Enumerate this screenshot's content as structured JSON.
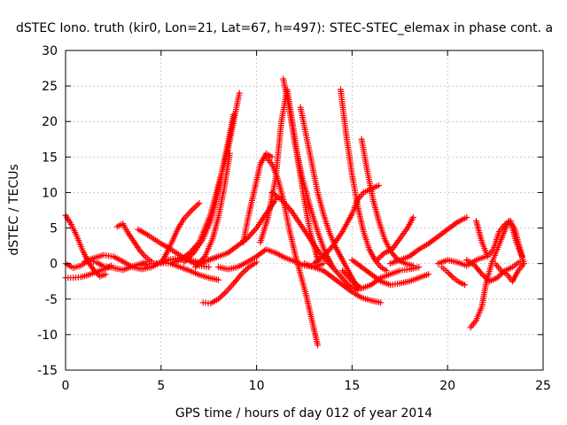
{
  "chart_data": {
    "type": "scatter",
    "title": "dSTEC Iono. truth (kir0, Lon=21, Lat=67, h=497): STEC-STEC_elemax in phase cont. a",
    "xlabel": "GPS time / hours of day 012 of year 2014",
    "ylabel": "dSTEC  / TECUs",
    "xlim": [
      0,
      25
    ],
    "ylim": [
      -15,
      30
    ],
    "x_ticks": [
      "0",
      "5",
      "10",
      "15",
      "20",
      "25"
    ],
    "y_ticks": [
      "-15",
      "-10",
      "-5",
      "0",
      "5",
      "10",
      "15",
      "20",
      "25",
      "30"
    ],
    "grid": true,
    "marker": "plus",
    "color": "#ff0000",
    "series": [
      {
        "x": [
          0.0,
          0.3,
          0.6,
          0.9,
          1.2,
          1.5,
          1.8,
          2.1
        ],
        "y": [
          6.8,
          5.5,
          3.8,
          1.8,
          0.2,
          -1.0,
          -1.8,
          -1.5
        ]
      },
      {
        "x": [
          0.0,
          0.4,
          0.8,
          1.2,
          1.6,
          2.0,
          2.4
        ],
        "y": [
          -2.0,
          -2.0,
          -1.9,
          -1.6,
          -1.2,
          -0.8,
          -0.3
        ]
      },
      {
        "x": [
          0.0,
          0.4,
          0.8,
          1.2,
          1.6,
          2.0,
          2.5,
          3.0,
          3.6,
          4.2
        ],
        "y": [
          0.0,
          -0.6,
          -0.3,
          0.4,
          0.2,
          -0.4,
          -0.6,
          -0.9,
          -0.3,
          0.2
        ]
      },
      {
        "x": [
          1.0,
          1.5,
          2.0,
          2.5,
          3.0,
          3.5,
          4.0,
          4.5,
          5.0,
          5.5,
          6.0,
          6.5,
          7.0,
          7.5,
          8.0
        ],
        "y": [
          0.3,
          0.8,
          1.2,
          1.0,
          0.3,
          -0.5,
          -0.8,
          -0.5,
          0.2,
          0.6,
          0.8,
          0.5,
          0.2,
          0.5,
          1.0
        ]
      },
      {
        "x": [
          2.7,
          3.0,
          3.3,
          3.6,
          3.9,
          4.2,
          4.5
        ],
        "y": [
          5.2,
          5.6,
          4.2,
          3.0,
          1.8,
          0.9,
          0.3
        ]
      },
      {
        "x": [
          3.8,
          4.2,
          4.6,
          5.0,
          5.4,
          5.8,
          6.2,
          6.6,
          7.0,
          7.5
        ],
        "y": [
          4.8,
          4.2,
          3.5,
          2.8,
          2.2,
          1.5,
          0.8,
          0.2,
          -0.3,
          -0.5
        ]
      },
      {
        "x": [
          4.0,
          4.5,
          5.0,
          5.5,
          6.0,
          6.5,
          7.0,
          7.5,
          8.0
        ],
        "y": [
          -0.2,
          0.0,
          0.1,
          0.0,
          -0.5,
          -1.0,
          -1.6,
          -2.0,
          -2.3
        ]
      },
      {
        "x": [
          5.0,
          5.3,
          5.6,
          5.9,
          6.2,
          6.6,
          7.0
        ],
        "y": [
          0.0,
          1.5,
          3.2,
          5.0,
          6.3,
          7.5,
          8.5
        ]
      },
      {
        "x": [
          5.5,
          6.0,
          6.5,
          7.0,
          7.3,
          7.6,
          7.9,
          8.2,
          8.5,
          8.8,
          9.1
        ],
        "y": [
          0.0,
          0.5,
          1.5,
          3.0,
          5.0,
          7.0,
          10.0,
          13.0,
          16.0,
          20.0,
          24.0
        ]
      },
      {
        "x": [
          6.2,
          6.7,
          7.2,
          7.6,
          7.9,
          8.2,
          8.5,
          8.8
        ],
        "y": [
          0.2,
          1.5,
          3.5,
          6.0,
          9.0,
          13.0,
          17.0,
          21.0
        ]
      },
      {
        "x": [
          6.8,
          7.3,
          7.7,
          8.0,
          8.3,
          8.6
        ],
        "y": [
          -0.5,
          1.0,
          3.5,
          6.5,
          10.5,
          15.5
        ]
      },
      {
        "x": [
          7.0,
          7.5,
          8.0,
          8.5,
          9.0,
          9.5,
          10.0,
          10.5,
          11.0
        ],
        "y": [
          0.0,
          0.5,
          1.0,
          1.5,
          2.5,
          3.5,
          5.0,
          7.0,
          9.0
        ]
      },
      {
        "x": [
          7.2,
          7.6,
          8.0,
          8.4,
          8.8,
          9.2,
          9.6,
          10.0
        ],
        "y": [
          -5.5,
          -5.6,
          -5.0,
          -4.0,
          -2.8,
          -1.5,
          -0.5,
          0.2
        ]
      },
      {
        "x": [
          8.0,
          8.5,
          9.0,
          9.5,
          10.0,
          10.5,
          11.0,
          11.5,
          12.0,
          12.5,
          13.0,
          13.5
        ],
        "y": [
          -0.5,
          -0.8,
          -0.5,
          0.2,
          1.0,
          2.0,
          1.5,
          0.8,
          0.3,
          -0.3,
          -0.5,
          0.0
        ]
      },
      {
        "x": [
          9.3,
          9.6,
          9.9,
          10.2,
          10.5,
          10.8
        ],
        "y": [
          3.0,
          7.0,
          10.5,
          14.0,
          15.5,
          15.0
        ]
      },
      {
        "x": [
          10.5,
          10.8,
          11.1,
          11.4,
          11.7,
          12.0,
          12.3,
          12.6,
          12.9,
          13.2
        ],
        "y": [
          15.0,
          14.0,
          12.0,
          9.0,
          5.0,
          1.5,
          -1.5,
          -4.5,
          -8.0,
          -11.5
        ]
      },
      {
        "x": [
          10.2,
          10.6,
          11.0,
          11.3,
          11.6,
          11.9,
          12.2,
          12.5,
          12.8,
          13.2
        ],
        "y": [
          3.0,
          6.5,
          12.0,
          20.0,
          24.5,
          19.5,
          14.0,
          9.0,
          4.5,
          0.5
        ]
      },
      {
        "x": [
          11.4,
          11.7,
          12.0,
          12.4,
          12.8,
          13.2,
          13.6,
          14.0
        ],
        "y": [
          26.0,
          22.0,
          17.0,
          12.0,
          8.0,
          4.5,
          1.5,
          -0.5
        ]
      },
      {
        "x": [
          10.8,
          11.3,
          11.8,
          12.3,
          12.8,
          13.3,
          13.8,
          14.3,
          14.8,
          15.3
        ],
        "y": [
          10.0,
          9.0,
          7.5,
          5.5,
          3.5,
          1.5,
          0.0,
          -1.5,
          -3.0,
          -3.8
        ]
      },
      {
        "x": [
          12.3,
          12.6,
          12.9,
          13.2,
          13.5,
          13.8,
          14.1,
          14.4,
          14.7,
          15.0,
          15.3
        ],
        "y": [
          22.0,
          18.0,
          14.0,
          10.0,
          7.0,
          4.5,
          2.5,
          1.0,
          -0.5,
          -2.0,
          -3.5
        ]
      },
      {
        "x": [
          12.5,
          13.0,
          13.5,
          14.0,
          14.5,
          15.0,
          15.5,
          16.0,
          16.5
        ],
        "y": [
          0.0,
          -0.5,
          -1.0,
          -2.0,
          -3.0,
          -4.0,
          -4.8,
          -5.2,
          -5.5
        ]
      },
      {
        "x": [
          13.0,
          13.5,
          14.0,
          14.5,
          15.0,
          15.3,
          15.6,
          16.0,
          16.4
        ],
        "y": [
          0.0,
          1.0,
          2.5,
          4.5,
          7.0,
          9.0,
          10.0,
          10.5,
          11.0
        ]
      },
      {
        "x": [
          14.4,
          14.7,
          15.0,
          15.3,
          15.6,
          15.9,
          16.2,
          16.5,
          16.8
        ],
        "y": [
          24.5,
          18.0,
          12.5,
          8.0,
          4.5,
          2.0,
          0.5,
          -0.5,
          -1.0
        ]
      },
      {
        "x": [
          15.5,
          15.8,
          16.1,
          16.4,
          16.7,
          17.0,
          17.4,
          17.8,
          18.2
        ],
        "y": [
          17.5,
          13.0,
          9.0,
          6.0,
          3.5,
          1.8,
          0.5,
          0.0,
          -0.3
        ]
      },
      {
        "x": [
          14.5,
          15.0,
          15.5,
          16.0,
          16.5,
          17.0,
          17.5,
          18.0,
          18.5
        ],
        "y": [
          -1.0,
          -2.5,
          -3.5,
          -3.0,
          -2.0,
          -1.5,
          -1.0,
          -0.8,
          -0.5
        ]
      },
      {
        "x": [
          15.0,
          15.5,
          16.0,
          16.5,
          17.0,
          17.5,
          18.0,
          18.5,
          19.0
        ],
        "y": [
          0.5,
          -0.5,
          -1.5,
          -2.5,
          -3.0,
          -2.8,
          -2.5,
          -2.0,
          -1.5
        ]
      },
      {
        "x": [
          16.3,
          16.7,
          17.1,
          17.5,
          17.9,
          18.2
        ],
        "y": [
          0.5,
          1.5,
          2.0,
          3.5,
          5.0,
          6.5
        ]
      },
      {
        "x": [
          17.0,
          17.5,
          18.0,
          18.5,
          19.0,
          19.5,
          20.0,
          20.5,
          21.0
        ],
        "y": [
          0.0,
          0.5,
          1.0,
          2.0,
          2.8,
          3.8,
          4.8,
          5.8,
          6.5
        ]
      },
      {
        "x": [
          19.5,
          20.0,
          20.5,
          21.0,
          21.5,
          22.0
        ],
        "y": [
          0.0,
          0.5,
          0.2,
          -0.3,
          0.5,
          1.0
        ]
      },
      {
        "x": [
          19.7,
          20.0,
          20.3,
          20.6,
          20.9
        ],
        "y": [
          -0.5,
          -1.2,
          -2.0,
          -2.6,
          -3.0
        ]
      },
      {
        "x": [
          21.2,
          21.5,
          21.8,
          22.0,
          22.3,
          22.6,
          22.9,
          23.2,
          23.5,
          23.8,
          24.0
        ],
        "y": [
          -9.0,
          -8.0,
          -6.0,
          -3.0,
          0.0,
          2.0,
          4.0,
          6.0,
          5.0,
          2.0,
          0.0
        ]
      },
      {
        "x": [
          21.5,
          21.8,
          22.1,
          22.4,
          22.7,
          23.0,
          23.3,
          23.6,
          23.9
        ],
        "y": [
          6.0,
          3.0,
          1.0,
          2.0,
          4.5,
          5.5,
          6.0,
          3.0,
          1.0
        ]
      },
      {
        "x": [
          21.0,
          21.4,
          21.8,
          22.2,
          22.6,
          23.0,
          23.4,
          23.8
        ],
        "y": [
          0.5,
          -0.2,
          -1.5,
          -2.5,
          -2.0,
          -1.0,
          -0.5,
          0.3
        ]
      },
      {
        "x": [
          22.5,
          22.8,
          23.1,
          23.4,
          23.7,
          24.0
        ],
        "y": [
          0.0,
          -1.0,
          -1.5,
          -2.5,
          -1.0,
          0.0
        ]
      }
    ]
  }
}
